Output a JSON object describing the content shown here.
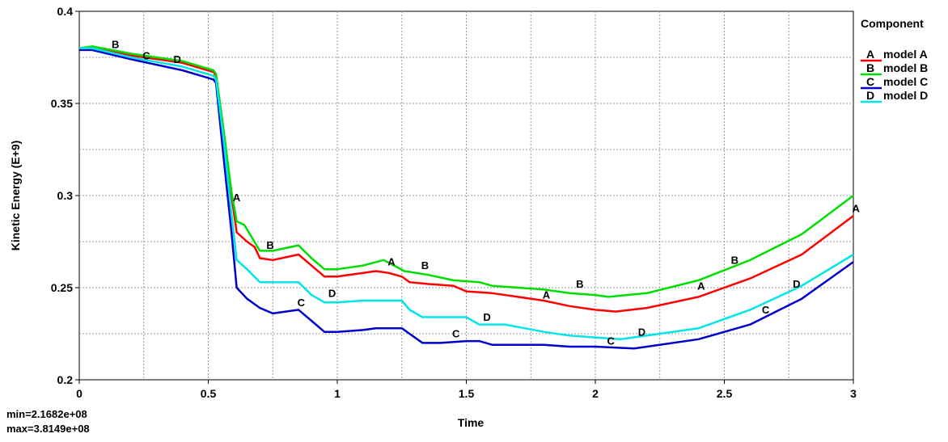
{
  "chart_data": {
    "type": "line",
    "xlabel": "Time",
    "ylabel": "Kinetic Energy (E+9)",
    "xlim": [
      0,
      3
    ],
    "ylim": [
      0.2,
      0.4
    ],
    "x_ticks": [
      "0",
      "0.5",
      "1",
      "1.5",
      "2",
      "2.5",
      "3"
    ],
    "y_ticks": [
      "0.2",
      "0.25",
      "0.3",
      "0.35",
      "0.4"
    ],
    "grid": true,
    "legend_position": "right",
    "legend_title": "Component",
    "stats": {
      "min": "min=2.1682e+08",
      "max": "max=3.8149e+08"
    },
    "series": [
      {
        "key": "A",
        "name": "model A",
        "color": "#ff0000",
        "points": [
          [
            0,
            0.38
          ],
          [
            0.05,
            0.38
          ],
          [
            0.2,
            0.376
          ],
          [
            0.4,
            0.372
          ],
          [
            0.52,
            0.367
          ],
          [
            0.53,
            0.365
          ],
          [
            0.56,
            0.335
          ],
          [
            0.59,
            0.3
          ],
          [
            0.61,
            0.28
          ],
          [
            0.65,
            0.275
          ],
          [
            0.68,
            0.272
          ],
          [
            0.7,
            0.266
          ],
          [
            0.75,
            0.265
          ],
          [
            0.85,
            0.268
          ],
          [
            0.9,
            0.262
          ],
          [
            0.95,
            0.256
          ],
          [
            1.0,
            0.256
          ],
          [
            1.1,
            0.258
          ],
          [
            1.15,
            0.259
          ],
          [
            1.2,
            0.258
          ],
          [
            1.25,
            0.256
          ],
          [
            1.28,
            0.253
          ],
          [
            1.35,
            0.252
          ],
          [
            1.45,
            0.251
          ],
          [
            1.5,
            0.248
          ],
          [
            1.6,
            0.247
          ],
          [
            1.7,
            0.245
          ],
          [
            1.8,
            0.243
          ],
          [
            1.9,
            0.24
          ],
          [
            2.0,
            0.238
          ],
          [
            2.08,
            0.237
          ],
          [
            2.2,
            0.239
          ],
          [
            2.4,
            0.245
          ],
          [
            2.6,
            0.255
          ],
          [
            2.8,
            0.268
          ],
          [
            3.0,
            0.289
          ]
        ],
        "markers": [
          [
            0.61,
            0.297
          ],
          [
            1.21,
            0.262
          ],
          [
            1.81,
            0.244
          ],
          [
            2.41,
            0.249
          ],
          [
            3.01,
            0.291
          ]
        ]
      },
      {
        "key": "B",
        "name": "model B",
        "color": "#00dd00",
        "points": [
          [
            0,
            0.38
          ],
          [
            0.05,
            0.381
          ],
          [
            0.2,
            0.377
          ],
          [
            0.4,
            0.373
          ],
          [
            0.52,
            0.368
          ],
          [
            0.53,
            0.366
          ],
          [
            0.56,
            0.335
          ],
          [
            0.59,
            0.302
          ],
          [
            0.61,
            0.286
          ],
          [
            0.64,
            0.284
          ],
          [
            0.7,
            0.27
          ],
          [
            0.75,
            0.27
          ],
          [
            0.85,
            0.273
          ],
          [
            0.9,
            0.266
          ],
          [
            0.95,
            0.26
          ],
          [
            1.0,
            0.26
          ],
          [
            1.1,
            0.262
          ],
          [
            1.18,
            0.265
          ],
          [
            1.22,
            0.262
          ],
          [
            1.26,
            0.259
          ],
          [
            1.35,
            0.257
          ],
          [
            1.45,
            0.254
          ],
          [
            1.55,
            0.253
          ],
          [
            1.6,
            0.251
          ],
          [
            1.7,
            0.25
          ],
          [
            1.8,
            0.249
          ],
          [
            1.9,
            0.247
          ],
          [
            2.0,
            0.246
          ],
          [
            2.05,
            0.245
          ],
          [
            2.2,
            0.247
          ],
          [
            2.4,
            0.254
          ],
          [
            2.6,
            0.265
          ],
          [
            2.8,
            0.279
          ],
          [
            3.0,
            0.3
          ]
        ],
        "markers": [
          [
            0.14,
            0.38
          ],
          [
            0.74,
            0.271
          ],
          [
            1.34,
            0.26
          ],
          [
            1.94,
            0.25
          ],
          [
            2.54,
            0.263
          ]
        ]
      },
      {
        "key": "C",
        "name": "model C",
        "color": "#0000cc",
        "points": [
          [
            0,
            0.379
          ],
          [
            0.05,
            0.379
          ],
          [
            0.2,
            0.374
          ],
          [
            0.4,
            0.368
          ],
          [
            0.52,
            0.363
          ],
          [
            0.53,
            0.361
          ],
          [
            0.56,
            0.32
          ],
          [
            0.59,
            0.28
          ],
          [
            0.61,
            0.25
          ],
          [
            0.65,
            0.244
          ],
          [
            0.7,
            0.239
          ],
          [
            0.75,
            0.236
          ],
          [
            0.85,
            0.238
          ],
          [
            0.9,
            0.232
          ],
          [
            0.95,
            0.226
          ],
          [
            1.0,
            0.226
          ],
          [
            1.1,
            0.227
          ],
          [
            1.15,
            0.228
          ],
          [
            1.25,
            0.228
          ],
          [
            1.28,
            0.225
          ],
          [
            1.33,
            0.22
          ],
          [
            1.4,
            0.22
          ],
          [
            1.5,
            0.221
          ],
          [
            1.55,
            0.221
          ],
          [
            1.6,
            0.219
          ],
          [
            1.7,
            0.219
          ],
          [
            1.8,
            0.219
          ],
          [
            1.9,
            0.218
          ],
          [
            2.0,
            0.218
          ],
          [
            2.15,
            0.217
          ],
          [
            2.2,
            0.218
          ],
          [
            2.4,
            0.222
          ],
          [
            2.6,
            0.23
          ],
          [
            2.8,
            0.244
          ],
          [
            3.0,
            0.264
          ]
        ],
        "markers": [
          [
            0.26,
            0.374
          ],
          [
            0.86,
            0.24
          ],
          [
            1.46,
            0.223
          ],
          [
            2.06,
            0.219
          ],
          [
            2.66,
            0.236
          ]
        ]
      },
      {
        "key": "D",
        "name": "model D",
        "color": "#00e5e5",
        "points": [
          [
            0,
            0.38
          ],
          [
            0.05,
            0.38
          ],
          [
            0.2,
            0.375
          ],
          [
            0.4,
            0.37
          ],
          [
            0.52,
            0.365
          ],
          [
            0.53,
            0.363
          ],
          [
            0.56,
            0.33
          ],
          [
            0.59,
            0.29
          ],
          [
            0.61,
            0.265
          ],
          [
            0.65,
            0.26
          ],
          [
            0.7,
            0.253
          ],
          [
            0.8,
            0.253
          ],
          [
            0.85,
            0.253
          ],
          [
            0.9,
            0.246
          ],
          [
            0.95,
            0.242
          ],
          [
            1.0,
            0.242
          ],
          [
            1.1,
            0.243
          ],
          [
            1.25,
            0.243
          ],
          [
            1.28,
            0.238
          ],
          [
            1.33,
            0.234
          ],
          [
            1.45,
            0.234
          ],
          [
            1.5,
            0.234
          ],
          [
            1.55,
            0.23
          ],
          [
            1.65,
            0.23
          ],
          [
            1.8,
            0.226
          ],
          [
            1.9,
            0.224
          ],
          [
            2.0,
            0.223
          ],
          [
            2.1,
            0.222
          ],
          [
            2.2,
            0.224
          ],
          [
            2.4,
            0.228
          ],
          [
            2.6,
            0.238
          ],
          [
            2.8,
            0.251
          ],
          [
            3.0,
            0.268
          ]
        ],
        "markers": [
          [
            0.38,
            0.372
          ],
          [
            0.98,
            0.245
          ],
          [
            1.58,
            0.232
          ],
          [
            2.18,
            0.224
          ],
          [
            2.78,
            0.25
          ]
        ]
      }
    ]
  }
}
